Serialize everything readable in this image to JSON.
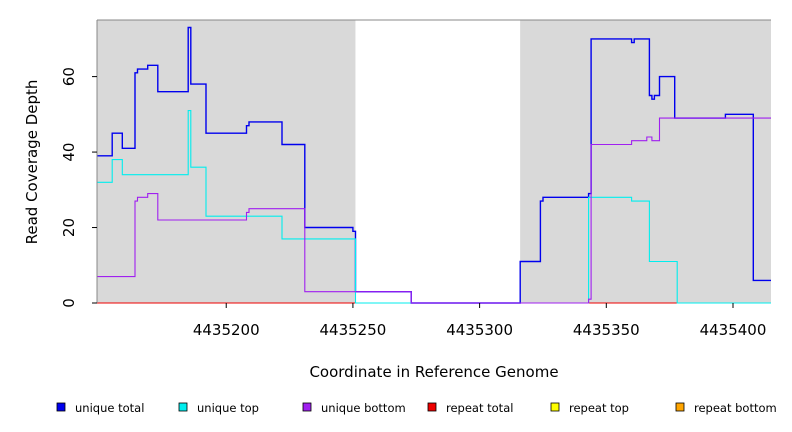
{
  "chart_data": {
    "type": "line",
    "title": "",
    "xlabel": "Coordinate in Reference Genome",
    "ylabel": "Read Coverage Depth",
    "xlim": [
      4435149,
      4435415
    ],
    "ylim": [
      0,
      75
    ],
    "x_ticks": [
      {
        "value": 4435200,
        "label": "4435200"
      },
      {
        "value": 4435250,
        "label": "4435250"
      },
      {
        "value": 4435300,
        "label": "4435300"
      },
      {
        "value": 4435350,
        "label": "4435350"
      },
      {
        "value": 4435400,
        "label": "4435400"
      }
    ],
    "y_ticks": [
      {
        "value": 0,
        "label": "0"
      },
      {
        "value": 20,
        "label": "20"
      },
      {
        "value": 40,
        "label": "40"
      },
      {
        "value": 60,
        "label": "60"
      }
    ],
    "shaded_regions": [
      {
        "x0": 4435149,
        "x1": 4435251
      },
      {
        "x0": 4435316,
        "x1": 4435415
      }
    ],
    "grid": false,
    "legend_position": "bottom",
    "series": [
      {
        "name": "unique total",
        "color": "#0000ee",
        "steps": [
          [
            4435149,
            39
          ],
          [
            4435155,
            45
          ],
          [
            4435159,
            41
          ],
          [
            4435164,
            61
          ],
          [
            4435165,
            62
          ],
          [
            4435169,
            63
          ],
          [
            4435173,
            56
          ],
          [
            4435185,
            73
          ],
          [
            4435186,
            58
          ],
          [
            4435192,
            45
          ],
          [
            4435208,
            47
          ],
          [
            4435209,
            48
          ],
          [
            4435222,
            42
          ],
          [
            4435231,
            20
          ],
          [
            4435250,
            19
          ],
          [
            4435251,
            3
          ],
          [
            4435273,
            0
          ],
          [
            4435316,
            11
          ],
          [
            4435324,
            27
          ],
          [
            4435325,
            28
          ],
          [
            4435343,
            29
          ],
          [
            4435344,
            70
          ],
          [
            4435360,
            69
          ],
          [
            4435361,
            70
          ],
          [
            4435367,
            55
          ],
          [
            4435368,
            54
          ],
          [
            4435369,
            55
          ],
          [
            4435371,
            60
          ],
          [
            4435377,
            49
          ],
          [
            4435397,
            50
          ],
          [
            4435408,
            6
          ],
          [
            4435415,
            6
          ]
        ]
      },
      {
        "name": "unique top",
        "color": "#00eeee",
        "steps": [
          [
            4435149,
            32
          ],
          [
            4435155,
            38
          ],
          [
            4435159,
            34
          ],
          [
            4435185,
            51
          ],
          [
            4435186,
            36
          ],
          [
            4435192,
            23
          ],
          [
            4435222,
            17
          ],
          [
            4435251,
            0
          ],
          [
            4435343,
            28
          ],
          [
            4435360,
            27
          ],
          [
            4435367,
            11
          ],
          [
            4435378,
            0
          ],
          [
            4435415,
            0
          ]
        ]
      },
      {
        "name": "unique bottom",
        "color": "#a020f0",
        "steps": [
          [
            4435149,
            7
          ],
          [
            4435164,
            27
          ],
          [
            4435165,
            28
          ],
          [
            4435169,
            29
          ],
          [
            4435173,
            22
          ],
          [
            4435208,
            24
          ],
          [
            4435209,
            25
          ],
          [
            4435231,
            3
          ],
          [
            4435273,
            0
          ],
          [
            4435343,
            1
          ],
          [
            4435344,
            42
          ],
          [
            4435360,
            43
          ],
          [
            4435366,
            44
          ],
          [
            4435368,
            43
          ],
          [
            4435371,
            49
          ],
          [
            4435415,
            49
          ]
        ]
      },
      {
        "name": "repeat total",
        "color": "#ee0000",
        "steps": [
          [
            4435149,
            0
          ],
          [
            4435415,
            0
          ]
        ]
      },
      {
        "name": "repeat top",
        "color": "#ffff00",
        "steps": [
          [
            4435149,
            0
          ],
          [
            4435415,
            0
          ]
        ]
      },
      {
        "name": "repeat bottom",
        "color": "#ffa500",
        "steps": [
          [
            4435149,
            0
          ],
          [
            4435415,
            0
          ]
        ]
      }
    ],
    "colors": {
      "shade": "#d9d9d9",
      "axis": "#000000",
      "frame": "#888888"
    }
  }
}
